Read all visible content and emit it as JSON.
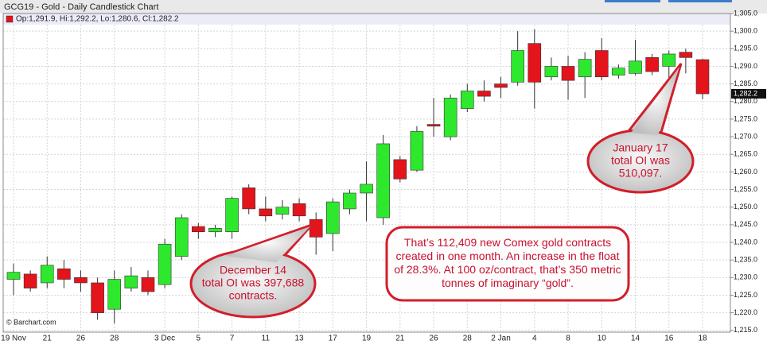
{
  "chart_data": {
    "type": "candlestick",
    "title": "GCG19 - Gold - Daily Candlestick Chart",
    "legend_text": "Op:1,291.9, Hi:1,292.2, Lo:1,280.6, Cl:1,282.2",
    "source": "© Barchart.com",
    "categories": [
      "19 Nov",
      null,
      "21",
      null,
      "26",
      null,
      "28",
      null,
      null,
      "3 Dec",
      null,
      "5",
      null,
      "7",
      null,
      "11",
      null,
      "13",
      null,
      "17",
      null,
      "19",
      null,
      "21",
      null,
      "26",
      null,
      "28",
      null,
      "2 Jan",
      null,
      "4",
      null,
      "8",
      null,
      "10",
      null,
      "14",
      null,
      "16",
      null,
      "18"
    ],
    "open": [
      1229.5,
      1231,
      1228.5,
      1232.5,
      1230,
      1228.5,
      1221,
      1227,
      1230,
      1228,
      1236,
      1244.5,
      1243,
      1243,
      1255.5,
      1249.5,
      1248,
      1251,
      1246.5,
      1242.5,
      1249.5,
      1254,
      1247,
      1263.5,
      1260.5,
      1273.5,
      1270,
      1278,
      1283,
      1285,
      1285.5,
      1296.5,
      1287,
      1290,
      1287,
      1294.5,
      1287.5,
      1288,
      1292.5,
      1290,
      1294,
      1291.9
    ],
    "high": [
      1234,
      1232,
      1236,
      1235,
      1232,
      1230,
      1232,
      1233,
      1232,
      1241,
      1248,
      1245.5,
      1245,
      1253,
      1256.5,
      1253,
      1252,
      1252.5,
      1248.5,
      1252.5,
      1255,
      1263,
      1270.5,
      1264.5,
      1273,
      1281,
      1282,
      1285,
      1286,
      1287,
      1300,
      1300.5,
      1292.5,
      1293,
      1294,
      1298,
      1290.5,
      1297.5,
      1293.5,
      1294.5,
      1295,
      1292.2
    ],
    "low": [
      1225,
      1226,
      1227,
      1227,
      1226,
      1218,
      1217,
      1226,
      1225,
      1227,
      1235,
      1241,
      1241.5,
      1241,
      1248,
      1246,
      1246.5,
      1246,
      1236.5,
      1237.5,
      1248,
      1246,
      1245,
      1257,
      1260,
      1270,
      1269,
      1277,
      1280,
      1281,
      1284.5,
      1278,
      1286,
      1280.5,
      1281,
      1286,
      1286.5,
      1287.5,
      1287.5,
      1285.5,
      1288,
      1280.6
    ],
    "close": [
      1231.5,
      1227,
      1233.5,
      1229.5,
      1228.5,
      1220,
      1229.5,
      1230.5,
      1226,
      1239.5,
      1247,
      1243,
      1244,
      1252.5,
      1249.5,
      1247.5,
      1250,
      1247.5,
      1241.5,
      1251.5,
      1254,
      1256.5,
      1268,
      1258,
      1271.5,
      1273,
      1281,
      1283,
      1281.5,
      1284,
      1294.5,
      1285.5,
      1290,
      1286,
      1292,
      1287,
      1289.5,
      1291.5,
      1288.5,
      1293.5,
      1292.5,
      1282.2
    ],
    "up_color": "#2ee82e",
    "down_color": "#e3141b",
    "ylim": [
      1214.5,
      1305
    ],
    "yticks": [
      {
        "value": 1215,
        "label": "1,215.0"
      },
      {
        "value": 1220,
        "label": "1,220.0"
      },
      {
        "value": 1225,
        "label": "1,225.0"
      },
      {
        "value": 1230,
        "label": "1,230.0"
      },
      {
        "value": 1235,
        "label": "1,235.0"
      },
      {
        "value": 1240,
        "label": "1,240.0"
      },
      {
        "value": 1245,
        "label": "1,245.0"
      },
      {
        "value": 1250,
        "label": "1,250.0"
      },
      {
        "value": 1255,
        "label": "1,255.0"
      },
      {
        "value": 1260,
        "label": "1,260.0"
      },
      {
        "value": 1265,
        "label": "1,265.0"
      },
      {
        "value": 1270,
        "label": "1,270.0"
      },
      {
        "value": 1275,
        "label": "1,275.0"
      },
      {
        "value": 1280,
        "label": "1,280.0"
      },
      {
        "value": 1285,
        "label": "1,285.0"
      },
      {
        "value": 1290,
        "label": "1,290.0"
      },
      {
        "value": 1295,
        "label": "1,295.0"
      },
      {
        "value": 1300,
        "label": "1,300.0"
      },
      {
        "value": 1305,
        "label": "1,305.0"
      }
    ],
    "last_price": {
      "value": 1282.2,
      "label": "1,282.2"
    },
    "grid": true,
    "annotations": [
      {
        "lines": [
          "December 14",
          "total OI was 397,688",
          "contracts."
        ]
      },
      {
        "lines": [
          "January 17",
          "total OI was",
          "510,097."
        ]
      },
      {
        "lines": [
          "That’s 112,409 new Comex gold contracts",
          "created in one month. An increase in the float",
          "of 28.3%. At 100 oz/contract, that’s 350 metric",
          "tonnes of imaginary “gold”."
        ]
      }
    ]
  }
}
